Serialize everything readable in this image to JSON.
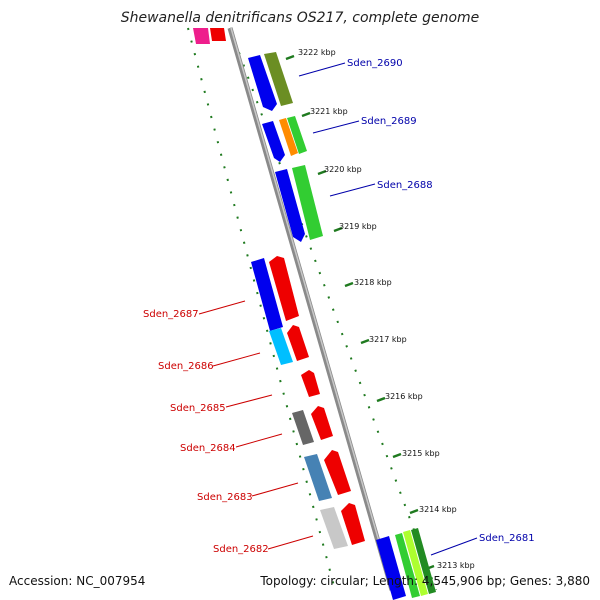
{
  "title": "Shewanella denitrificans OS217, complete genome",
  "footer": {
    "accession": "Accession: NC_007954",
    "summary": "Topology: circular; Length: 4,545,906 bp; Genes: 3,880"
  },
  "colors": {
    "backbone": "#8a8a8a",
    "tick": "#1f7a1f",
    "top_label": "#0000aa",
    "bottom_label": "#cc0000"
  },
  "axis": {
    "ticks": [
      "3222 kbp",
      "3221 kbp",
      "3220 kbp",
      "3219 kbp",
      "3218 kbp",
      "3217 kbp",
      "3216 kbp",
      "3215 kbp",
      "3214 kbp",
      "3213 kbp"
    ]
  },
  "genes": [
    {
      "name": "Sden_2690",
      "strand": "forward"
    },
    {
      "name": "Sden_2689",
      "strand": "forward"
    },
    {
      "name": "Sden_2688",
      "strand": "forward"
    },
    {
      "name": "Sden_2687",
      "strand": "reverse"
    },
    {
      "name": "Sden_2686",
      "strand": "reverse"
    },
    {
      "name": "Sden_2685",
      "strand": "reverse"
    },
    {
      "name": "Sden_2684",
      "strand": "reverse"
    },
    {
      "name": "Sden_2683",
      "strand": "reverse"
    },
    {
      "name": "Sden_2682",
      "strand": "reverse"
    },
    {
      "name": "Sden_2681",
      "strand": "forward"
    }
  ]
}
